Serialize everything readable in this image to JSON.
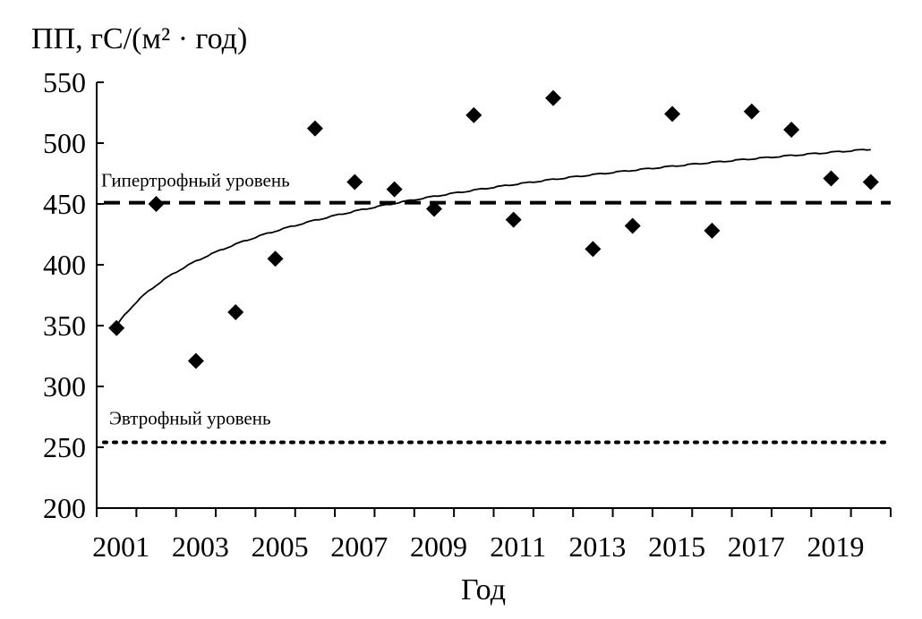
{
  "chart_data": {
    "type": "scatter",
    "title": "",
    "ylabel": "ПП, гС/(м² · год)",
    "xlabel": "Год",
    "ylim": [
      200,
      550
    ],
    "yticks": [
      "200",
      "250",
      "300",
      "350",
      "400",
      "450",
      "500",
      "550"
    ],
    "ytick_values": [
      200,
      250,
      300,
      350,
      400,
      450,
      500,
      550
    ],
    "categories": [
      2001,
      2002,
      2003,
      2004,
      2005,
      2006,
      2007,
      2008,
      2009,
      2010,
      2011,
      2012,
      2013,
      2014,
      2015,
      2016,
      2017,
      2018,
      2019,
      2020
    ],
    "xtick_labels": [
      "2001",
      "2003",
      "2005",
      "2007",
      "2009",
      "2011",
      "2013",
      "2015",
      "2017",
      "2019"
    ],
    "grid": false,
    "series": [
      {
        "name": "ПП",
        "marker": "diamond",
        "color": "#000000",
        "values": [
          348,
          450,
          321,
          361,
          405,
          512,
          468,
          462,
          446,
          523,
          437,
          537,
          413,
          432,
          524,
          428,
          526,
          511,
          471,
          468
        ]
      },
      {
        "name": "trend",
        "type": "log-line",
        "color": "#000000",
        "intercept": 350,
        "slope_ln": 48.5
      }
    ],
    "reference_lines": [
      {
        "label": "Гипертрофный уровень",
        "value": 451,
        "style": "dashed"
      },
      {
        "label": "Эвтрофный уровень",
        "value": 254,
        "style": "dotted"
      }
    ]
  }
}
